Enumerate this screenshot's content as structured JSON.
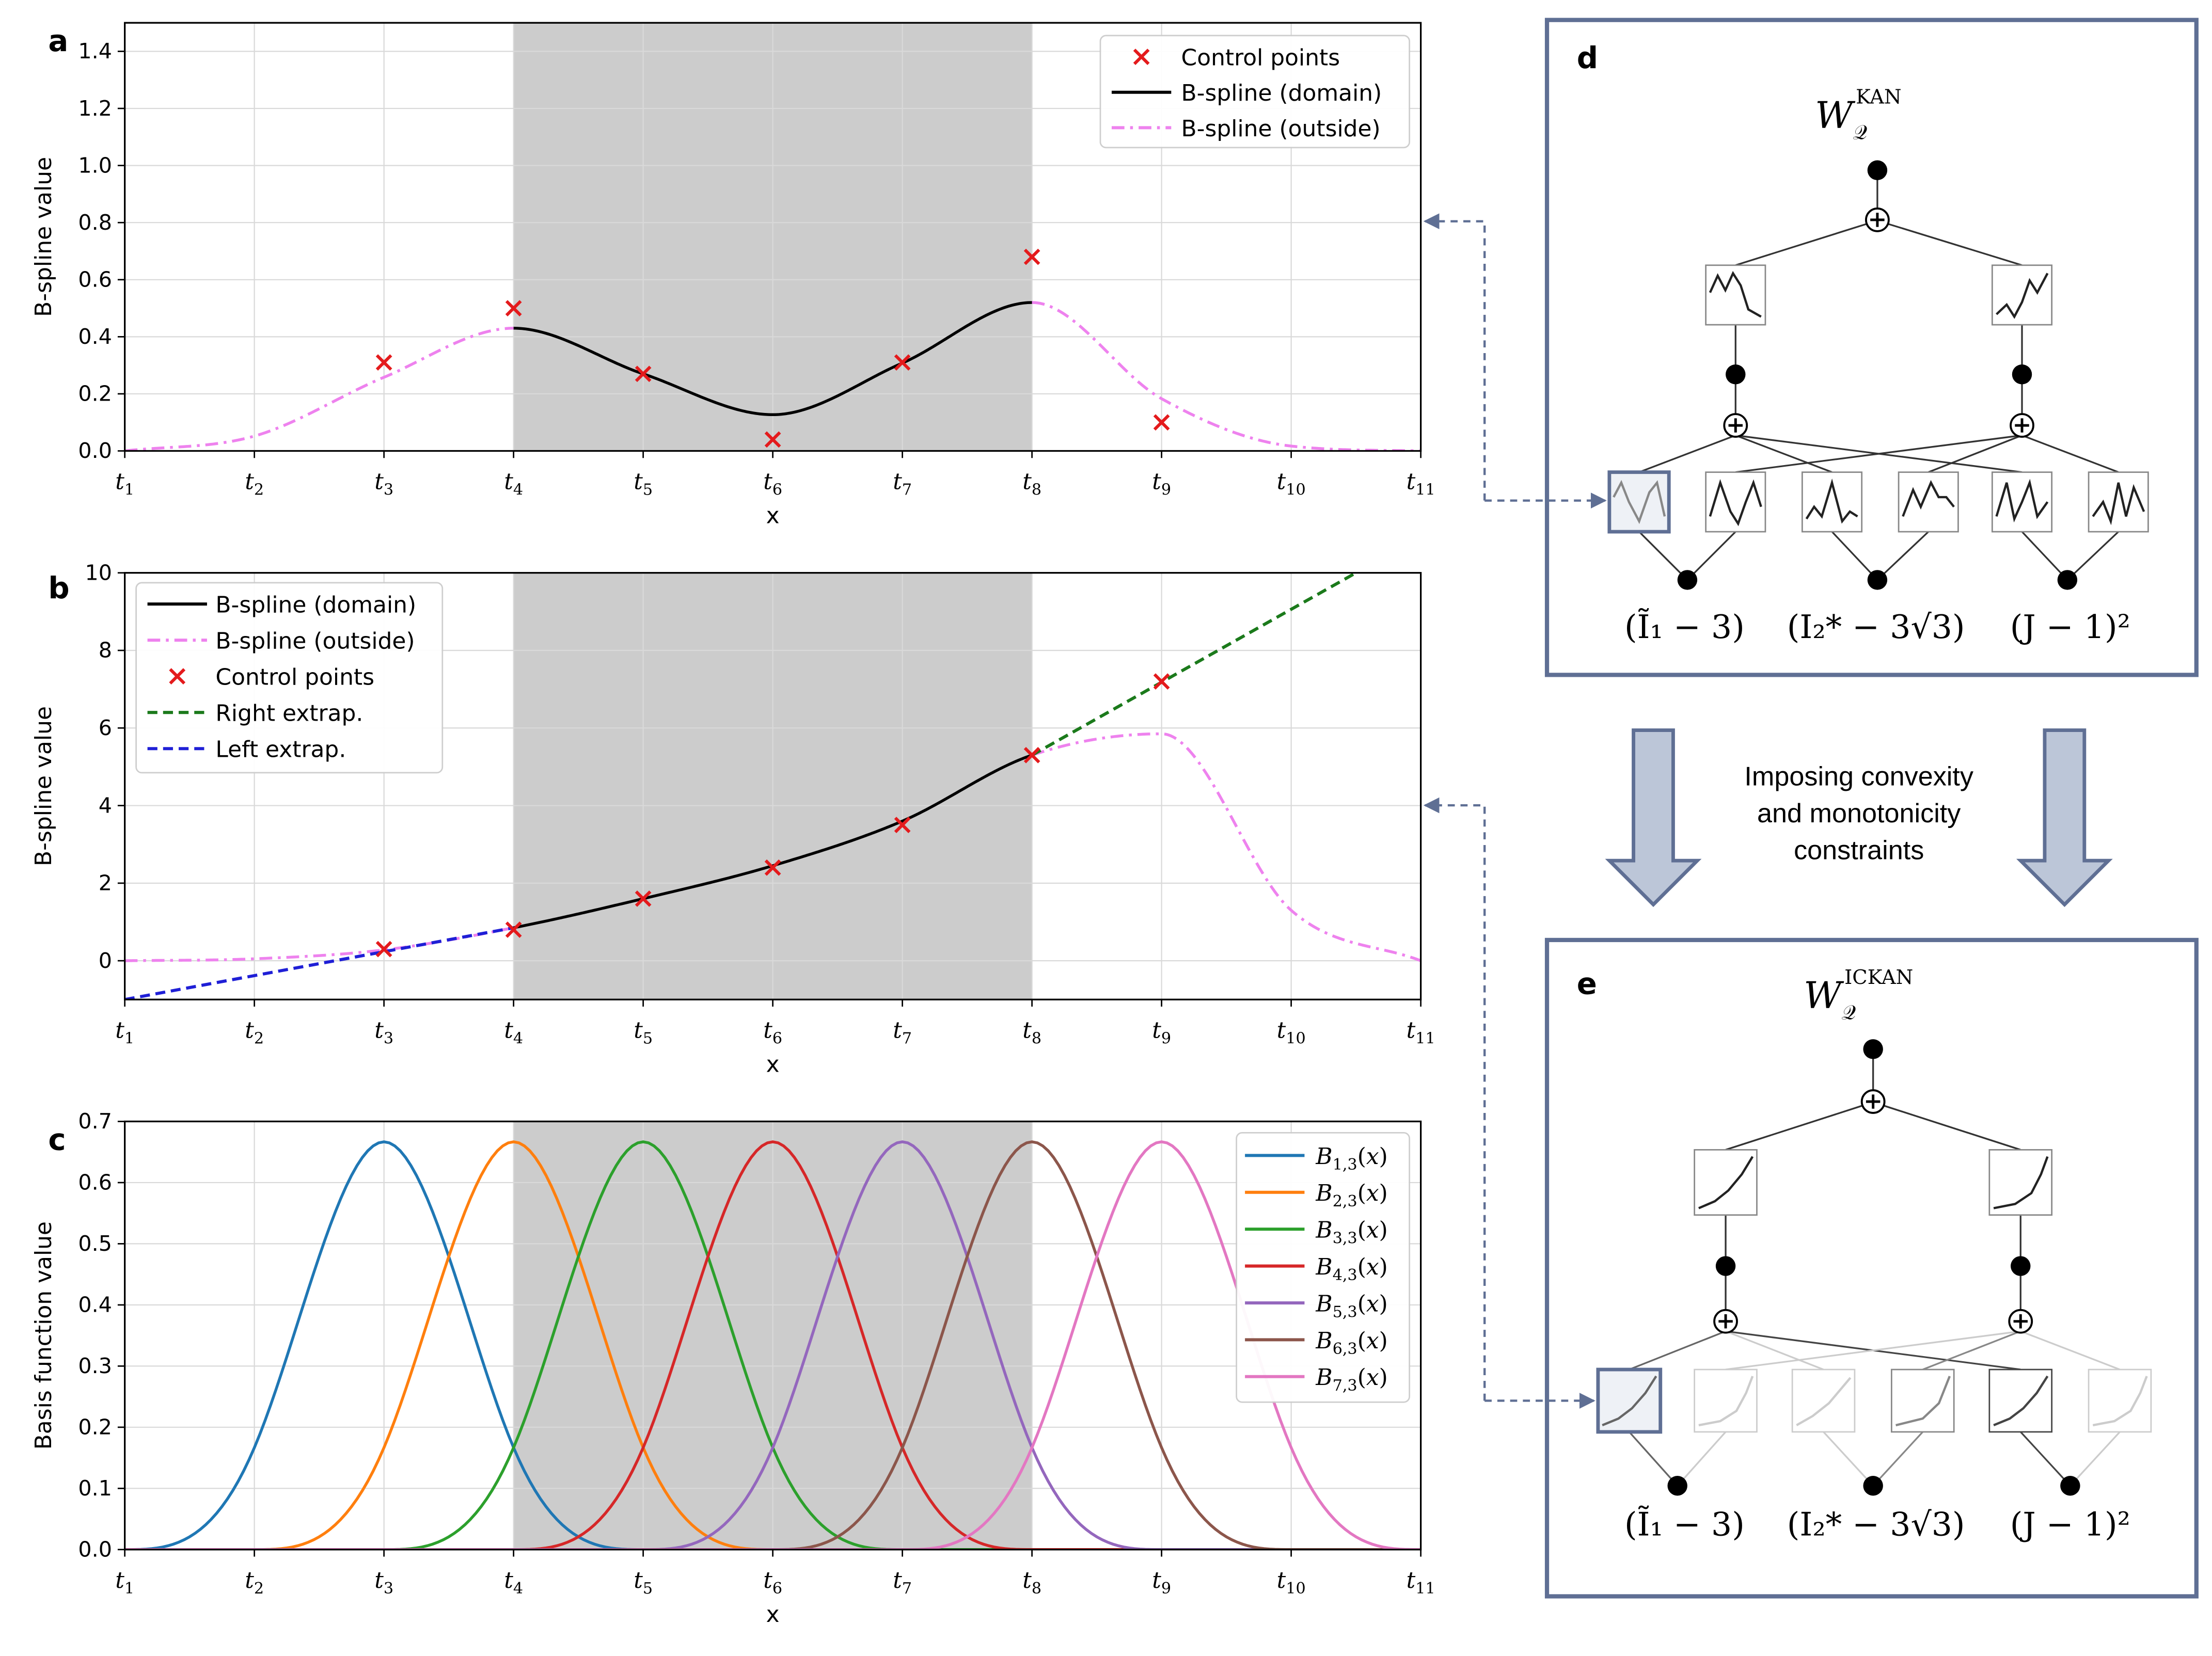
{
  "colors": {
    "domain_shade": "#cccccc",
    "grid": "#d9d9d9",
    "control_point": "#e41a1c",
    "domain_line": "#000000",
    "outside_line": "#ee82ee",
    "right_extrap": "#1b7a1b",
    "left_extrap": "#1f1fd6",
    "panel_border": "#5f6f94",
    "arrow_fill": "#bcc6d8",
    "arrow_stroke": "#5f6f94",
    "basis": [
      "#1f77b4",
      "#ff7f0e",
      "#2ca02c",
      "#d62728",
      "#9467bd",
      "#8c564b",
      "#e377c2"
    ]
  },
  "chart_data": [
    {
      "panel_label": "a",
      "type": "line",
      "x_ticks": [
        {
          "base": "t",
          "sub": "1"
        },
        {
          "base": "t",
          "sub": "2"
        },
        {
          "base": "t",
          "sub": "3"
        },
        {
          "base": "t",
          "sub": "4"
        },
        {
          "base": "t",
          "sub": "5"
        },
        {
          "base": "t",
          "sub": "6"
        },
        {
          "base": "t",
          "sub": "7"
        },
        {
          "base": "t",
          "sub": "8"
        },
        {
          "base": "t",
          "sub": "9"
        },
        {
          "base": "t",
          "sub": "10"
        },
        {
          "base": "t",
          "sub": "11"
        }
      ],
      "xlabel": "x",
      "ylabel": "B-spline value",
      "xlim": [
        1,
        11
      ],
      "ylim": [
        0,
        1.5
      ],
      "y_ticks": [
        0.0,
        0.2,
        0.4,
        0.6,
        0.8,
        1.0,
        1.2,
        1.4
      ],
      "y_tick_labels": [
        "0.0",
        "0.2",
        "0.4",
        "0.6",
        "0.8",
        "1.0",
        "1.2",
        "1.4"
      ],
      "shaded_domain": [
        4,
        8
      ],
      "grid": true,
      "legend_position": "top-right",
      "legend": [
        {
          "label": "Control points",
          "kind": "marker",
          "series": "control_points"
        },
        {
          "label": "B-spline (domain)",
          "kind": "solid",
          "series": "domain"
        },
        {
          "label": "B-spline (outside)",
          "kind": "dashdot",
          "series": "outside"
        }
      ],
      "control_points": {
        "x": [
          3,
          4,
          5,
          6,
          7,
          8,
          9
        ],
        "y": [
          0.31,
          0.5,
          0.27,
          0.04,
          0.31,
          0.68,
          0.1
        ]
      },
      "curve": {
        "x": [
          1,
          2,
          3,
          4,
          5,
          6,
          7,
          8,
          9,
          10,
          11
        ],
        "y": [
          0.0,
          0.052,
          0.258,
          0.43,
          0.27,
          0.127,
          0.308,
          0.52,
          0.183,
          0.017,
          0.0
        ]
      },
      "domain_range": [
        4,
        8
      ]
    },
    {
      "panel_label": "b",
      "type": "line",
      "x_ticks": [
        {
          "base": "t",
          "sub": "1"
        },
        {
          "base": "t",
          "sub": "2"
        },
        {
          "base": "t",
          "sub": "3"
        },
        {
          "base": "t",
          "sub": "4"
        },
        {
          "base": "t",
          "sub": "5"
        },
        {
          "base": "t",
          "sub": "6"
        },
        {
          "base": "t",
          "sub": "7"
        },
        {
          "base": "t",
          "sub": "8"
        },
        {
          "base": "t",
          "sub": "9"
        },
        {
          "base": "t",
          "sub": "10"
        },
        {
          "base": "t",
          "sub": "11"
        }
      ],
      "xlabel": "x",
      "ylabel": "B-spline value",
      "xlim": [
        1,
        11
      ],
      "ylim": [
        -1,
        10
      ],
      "y_ticks": [
        0,
        2,
        4,
        6,
        8,
        10
      ],
      "y_tick_labels": [
        "0",
        "2",
        "4",
        "6",
        "8",
        "10"
      ],
      "shaded_domain": [
        4,
        8
      ],
      "grid": true,
      "legend_position": "top-left",
      "legend": [
        {
          "label": "B-spline (domain)",
          "kind": "solid",
          "series": "domain"
        },
        {
          "label": "B-spline (outside)",
          "kind": "dashdot",
          "series": "outside"
        },
        {
          "label": "Control points",
          "kind": "marker",
          "series": "control_points"
        },
        {
          "label": "Right extrap.",
          "kind": "dashed",
          "series": "right_extrap"
        },
        {
          "label": "Left extrap.",
          "kind": "dashed",
          "series": "left_extrap"
        }
      ],
      "control_points": {
        "x": [
          3,
          4,
          5,
          6,
          7,
          8,
          9
        ],
        "y": [
          0.3,
          0.8,
          1.6,
          2.4,
          3.5,
          5.3,
          7.2
        ]
      },
      "curve": {
        "x": [
          1,
          2,
          3,
          4,
          5,
          6,
          7,
          8,
          9,
          10,
          11
        ],
        "y": [
          0.0,
          0.05,
          0.28,
          0.85,
          1.6,
          2.45,
          3.6,
          5.3,
          5.85,
          1.3,
          0.0
        ]
      },
      "domain_range": [
        4,
        8
      ],
      "right_extrap": {
        "x": [
          8,
          10.5
        ],
        "y": [
          5.3,
          10.0
        ]
      },
      "left_extrap": {
        "x": [
          1,
          4
        ],
        "y": [
          -1.0,
          0.85
        ]
      }
    },
    {
      "panel_label": "c",
      "type": "line",
      "x_ticks": [
        {
          "base": "t",
          "sub": "1"
        },
        {
          "base": "t",
          "sub": "2"
        },
        {
          "base": "t",
          "sub": "3"
        },
        {
          "base": "t",
          "sub": "4"
        },
        {
          "base": "t",
          "sub": "5"
        },
        {
          "base": "t",
          "sub": "6"
        },
        {
          "base": "t",
          "sub": "7"
        },
        {
          "base": "t",
          "sub": "8"
        },
        {
          "base": "t",
          "sub": "9"
        },
        {
          "base": "t",
          "sub": "10"
        },
        {
          "base": "t",
          "sub": "11"
        }
      ],
      "xlabel": "x",
      "ylabel": "Basis function value",
      "xlim": [
        1,
        11
      ],
      "ylim": [
        0,
        0.7
      ],
      "y_ticks": [
        0.0,
        0.1,
        0.2,
        0.3,
        0.4,
        0.5,
        0.6,
        0.7
      ],
      "y_tick_labels": [
        "0.0",
        "0.1",
        "0.2",
        "0.3",
        "0.4",
        "0.5",
        "0.6",
        "0.7"
      ],
      "shaded_domain": [
        4,
        8
      ],
      "grid": true,
      "legend_position": "top-right",
      "series": [
        {
          "name": "B_{1,3}(x)",
          "sub": "1,3",
          "start_knot": 1
        },
        {
          "name": "B_{2,3}(x)",
          "sub": "2,3",
          "start_knot": 2
        },
        {
          "name": "B_{3,3}(x)",
          "sub": "3,3",
          "start_knot": 3
        },
        {
          "name": "B_{4,3}(x)",
          "sub": "4,3",
          "start_knot": 4
        },
        {
          "name": "B_{5,3}(x)",
          "sub": "5,3",
          "start_knot": 5
        },
        {
          "name": "B_{6,3}(x)",
          "sub": "6,3",
          "start_knot": 6
        },
        {
          "name": "B_{7,3}(x)",
          "sub": "7,3",
          "start_knot": 7
        }
      ],
      "peak_value": 0.667
    }
  ],
  "diagram_d": {
    "label": "d",
    "title": "W",
    "title_sub": "𝒬",
    "title_sup": "KAN",
    "inputs": [
      "(Ĩ₁ − 3)",
      "(I₂* − 3√3)",
      "(J − 1)²"
    ]
  },
  "arrows_text": [
    "Imposing convexity",
    "and monotonicity",
    "constraints"
  ],
  "diagram_e": {
    "label": "e",
    "title": "W",
    "title_sub": "𝒬",
    "title_sup": "ICKAN",
    "inputs": [
      "(Ĩ₁ − 3)",
      "(I₂* − 3√3)",
      "(J − 1)²"
    ]
  }
}
